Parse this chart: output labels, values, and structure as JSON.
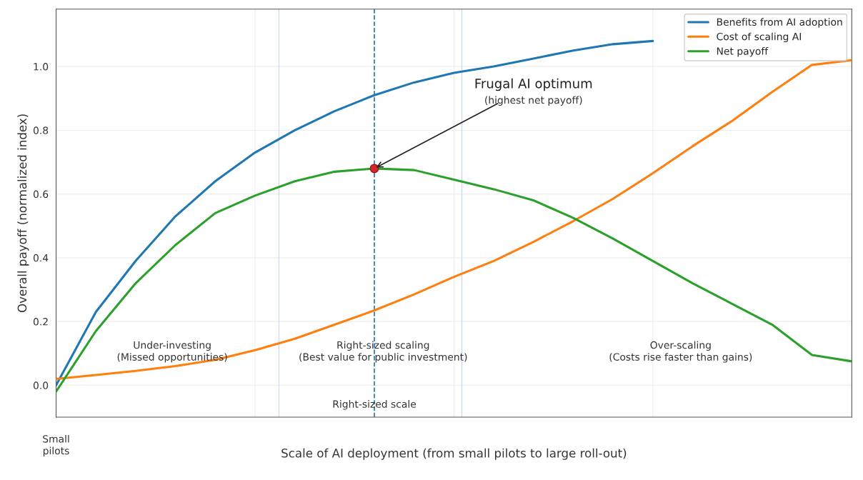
{
  "chart_data": {
    "type": "line",
    "xlabel": "Scale of AI deployment (from small pilots to large roll-out)",
    "ylabel": "Overall payoff (normalized index)",
    "categories": [
      null,
      null,
      null,
      null,
      null,
      null,
      null,
      null,
      null,
      null,
      null,
      null,
      null,
      null,
      null,
      null,
      null,
      null,
      null,
      null,
      null
    ],
    "series": [
      {
        "name": "Benefits from AI adoption",
        "color": "#1f77b4",
        "values": [
          0,
          0.23,
          0.39,
          0.53,
          0.64,
          0.73,
          0.8,
          0.86,
          0.91,
          0.95,
          0.98,
          1.0,
          1.025,
          1.05,
          1.07,
          1.08,
          null,
          null,
          null,
          null,
          null
        ]
      },
      {
        "name": "Cost of scaling AI",
        "color": "#ff7f0e",
        "values": [
          0.02,
          0.032,
          0.045,
          0.06,
          0.08,
          0.11,
          0.146,
          0.19,
          0.235,
          0.285,
          0.34,
          0.39,
          0.45,
          0.515,
          0.585,
          0.665,
          0.75,
          0.83,
          0.92,
          1.005,
          1.02
        ]
      },
      {
        "name": "Net payoff",
        "color": "#2ca02c",
        "values": [
          -0.02,
          0.17,
          0.32,
          0.44,
          0.54,
          0.595,
          0.64,
          0.67,
          0.68,
          0.675,
          0.645,
          0.615,
          0.58,
          0.525,
          0.46,
          0.39,
          0.32,
          0.255,
          0.19,
          0.095,
          0.075
        ]
      },
      {
        "type": "scatter",
        "color": "#d62728",
        "values": [
          null,
          null,
          null,
          null,
          null,
          null,
          null,
          null,
          0.68,
          null,
          null,
          null,
          null,
          null,
          null,
          null,
          null,
          null,
          null,
          null,
          null
        ]
      }
    ],
    "ylim": [
      -0.1,
      1.18
    ],
    "yticks": [
      {
        "value": 0,
        "label": "0.0"
      },
      0.2,
      0.4,
      0.6,
      0.8,
      {
        "value": 1,
        "label": "1.0"
      }
    ],
    "annotations": [
      "Frugal AI optimum",
      "(highest net payoff)",
      "Under-investing\n(Missed opportunities)",
      "Right-sized scaling\n(Best value for public investment)",
      "Over-scaling\n(Costs rise faster than gains)",
      "Small\npilots",
      "Right-sized scale"
    ],
    "grid": true,
    "legend": "top right",
    "line_style": "solid"
  }
}
